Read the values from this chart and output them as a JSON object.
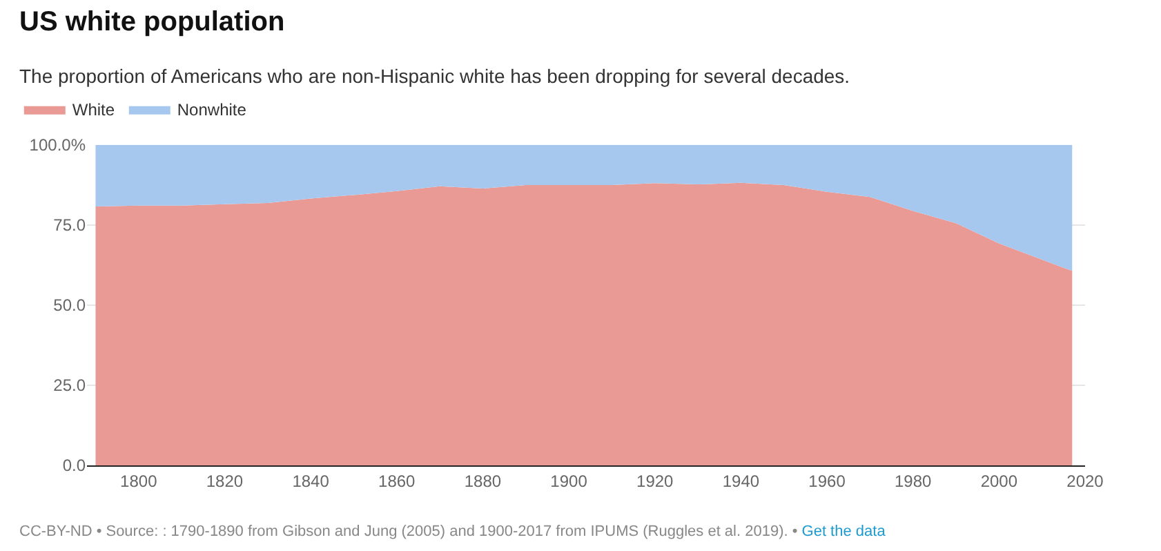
{
  "chart_data": {
    "type": "area",
    "stacked": true,
    "title": "US white population",
    "subtitle": "The proportion of Americans who are non-Hispanic white has been dropping for several decades.",
    "x": [
      1790,
      1800,
      1810,
      1820,
      1830,
      1840,
      1850,
      1860,
      1870,
      1880,
      1890,
      1900,
      1910,
      1920,
      1930,
      1940,
      1950,
      1960,
      1970,
      1980,
      1990,
      2000,
      2010,
      2017
    ],
    "series": [
      {
        "name": "White",
        "color": "#ea9a95",
        "values": [
          80.8,
          81.1,
          81.1,
          81.5,
          81.9,
          83.3,
          84.4,
          85.6,
          87.1,
          86.4,
          87.5,
          87.5,
          87.5,
          88.1,
          87.7,
          88.2,
          87.5,
          85.4,
          83.8,
          79.4,
          75.6,
          69.3,
          64.2,
          60.7
        ]
      },
      {
        "name": "Nonwhite",
        "color": "#a6c8ef",
        "values": [
          19.2,
          18.9,
          18.9,
          18.5,
          18.1,
          16.7,
          15.6,
          14.4,
          12.9,
          13.6,
          12.5,
          12.5,
          12.5,
          11.9,
          12.3,
          11.8,
          12.5,
          14.6,
          16.2,
          20.6,
          24.4,
          30.7,
          35.8,
          39.3
        ]
      }
    ],
    "xlim": [
      1788,
      2020
    ],
    "xticks": [
      1800,
      1820,
      1840,
      1860,
      1880,
      1900,
      1920,
      1940,
      1960,
      1980,
      2000,
      2020
    ],
    "ylim": [
      0,
      100
    ],
    "yticks": [
      {
        "value": 0,
        "label": "0.0"
      },
      {
        "value": 25,
        "label": "25.0"
      },
      {
        "value": 50,
        "label": "50.0"
      },
      {
        "value": 75,
        "label": "75.0"
      },
      {
        "value": 100,
        "label": "100.0%"
      }
    ],
    "grid": "y",
    "legend": "top left",
    "annotations": [
      "CC-BY-ND • Source: : 1790-1890 from Gibson and Jung (2005) and 1900-2017 from IPUMS (Ruggles et al. 2019). • ",
      "Get the data"
    ]
  }
}
